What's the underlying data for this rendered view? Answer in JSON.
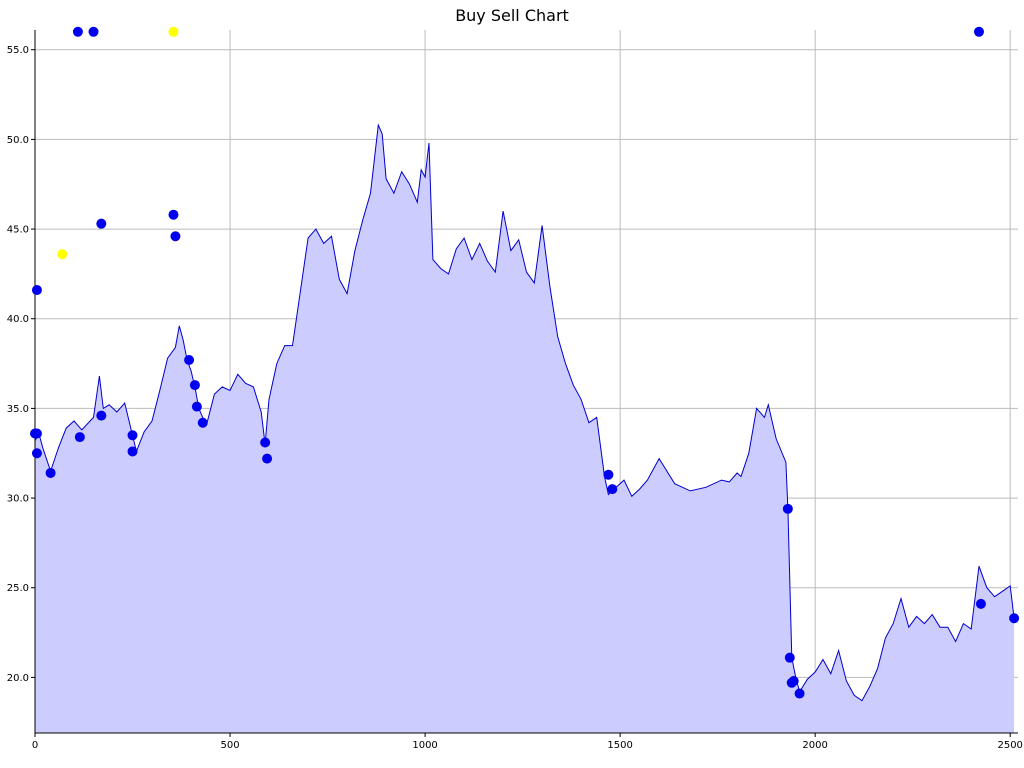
{
  "chart_data": {
    "type": "area",
    "title": "Buy Sell Chart",
    "xlabel": "",
    "ylabel": "",
    "xlim": [
      0,
      2520
    ],
    "ylim": [
      16.9,
      56.1
    ],
    "grid": true,
    "x_ticks": [
      0,
      500,
      1000,
      1500,
      2000,
      2500
    ],
    "y_ticks": [
      20.0,
      25.0,
      30.0,
      35.0,
      40.0,
      45.0,
      50.0,
      55.0
    ],
    "colors": {
      "line": "#0000cc",
      "fill": "#ccccff",
      "buy_sell_marker": "#0000ee",
      "alt_marker": "#ffff00",
      "grid": "#bbbbbb",
      "axis": "#000000"
    },
    "price_series": {
      "x": [
        0,
        10,
        20,
        40,
        60,
        80,
        100,
        120,
        150,
        165,
        175,
        190,
        210,
        230,
        250,
        260,
        280,
        300,
        320,
        340,
        360,
        370,
        380,
        390,
        400,
        410,
        420,
        430,
        440,
        460,
        480,
        500,
        520,
        540,
        560,
        580,
        590,
        600,
        620,
        640,
        660,
        680,
        700,
        720,
        740,
        760,
        780,
        800,
        820,
        840,
        860,
        880,
        890,
        900,
        920,
        940,
        960,
        980,
        990,
        1000,
        1010,
        1020,
        1040,
        1060,
        1080,
        1100,
        1120,
        1140,
        1160,
        1180,
        1200,
        1220,
        1240,
        1260,
        1280,
        1300,
        1320,
        1340,
        1360,
        1380,
        1400,
        1420,
        1440,
        1460,
        1470,
        1490,
        1510,
        1530,
        1550,
        1570,
        1600,
        1640,
        1680,
        1720,
        1760,
        1780,
        1800,
        1810,
        1830,
        1850,
        1870,
        1880,
        1900,
        1925,
        1930,
        1940,
        1950,
        1960,
        1980,
        2000,
        2020,
        2040,
        2060,
        2080,
        2100,
        2120,
        2140,
        2160,
        2180,
        2200,
        2220,
        2240,
        2260,
        2280,
        2300,
        2320,
        2340,
        2360,
        2380,
        2400,
        2420,
        2440,
        2460,
        2480,
        2500,
        2510
      ],
      "y": [
        33.2,
        33.6,
        32.8,
        31.5,
        32.8,
        33.9,
        34.3,
        33.8,
        34.5,
        36.8,
        35.0,
        35.2,
        34.8,
        35.3,
        33.5,
        32.6,
        33.7,
        34.3,
        36.0,
        37.8,
        38.4,
        39.6,
        38.8,
        37.7,
        37.1,
        36.2,
        35.0,
        34.5,
        34.1,
        35.8,
        36.2,
        36.0,
        36.9,
        36.4,
        36.2,
        34.8,
        33.0,
        35.5,
        37.5,
        38.5,
        38.5,
        41.5,
        44.5,
        45.0,
        44.2,
        44.6,
        42.2,
        41.4,
        43.8,
        45.5,
        47.0,
        50.8,
        50.3,
        47.8,
        47.0,
        48.2,
        47.5,
        46.5,
        48.3,
        47.9,
        49.8,
        43.3,
        42.8,
        42.5,
        43.9,
        44.5,
        43.3,
        44.2,
        43.2,
        42.6,
        46.0,
        43.8,
        44.4,
        42.6,
        42.0,
        45.2,
        41.8,
        39.0,
        37.5,
        36.3,
        35.5,
        34.2,
        34.5,
        31.2,
        30.2,
        30.6,
        31.0,
        30.1,
        30.5,
        31.0,
        32.2,
        30.8,
        30.4,
        30.6,
        31.0,
        30.9,
        31.4,
        31.2,
        32.5,
        35.0,
        34.5,
        35.2,
        33.3,
        32.0,
        29.4,
        21.1,
        20.0,
        19.2,
        19.9,
        20.3,
        21.0,
        20.2,
        21.5,
        19.8,
        19.0,
        18.7,
        19.5,
        20.5,
        22.2,
        23.0,
        24.4,
        22.8,
        23.4,
        23.0,
        23.5,
        22.8,
        22.8,
        22.0,
        23.0,
        22.7,
        26.2,
        25.0,
        24.5,
        24.8,
        25.1,
        23.3
      ],
      "baseline": 16.9
    },
    "markers": [
      {
        "x": 0,
        "y": 33.6,
        "kind": "blue"
      },
      {
        "x": 5,
        "y": 33.6,
        "kind": "blue"
      },
      {
        "x": 5,
        "y": 32.5,
        "kind": "blue"
      },
      {
        "x": 5,
        "y": 41.6,
        "kind": "blue"
      },
      {
        "x": 40,
        "y": 31.4,
        "kind": "blue"
      },
      {
        "x": 70,
        "y": 43.6,
        "kind": "yellow"
      },
      {
        "x": 110,
        "y": 56.0,
        "kind": "blue"
      },
      {
        "x": 115,
        "y": 33.4,
        "kind": "blue"
      },
      {
        "x": 150,
        "y": 56.0,
        "kind": "blue"
      },
      {
        "x": 170,
        "y": 34.6,
        "kind": "blue"
      },
      {
        "x": 170,
        "y": 45.3,
        "kind": "blue"
      },
      {
        "x": 250,
        "y": 33.5,
        "kind": "blue"
      },
      {
        "x": 250,
        "y": 32.6,
        "kind": "blue"
      },
      {
        "x": 355,
        "y": 56.0,
        "kind": "yellow"
      },
      {
        "x": 355,
        "y": 45.8,
        "kind": "blue"
      },
      {
        "x": 360,
        "y": 44.6,
        "kind": "blue"
      },
      {
        "x": 395,
        "y": 37.7,
        "kind": "blue"
      },
      {
        "x": 410,
        "y": 36.3,
        "kind": "blue"
      },
      {
        "x": 415,
        "y": 35.1,
        "kind": "blue"
      },
      {
        "x": 430,
        "y": 34.2,
        "kind": "blue"
      },
      {
        "x": 590,
        "y": 33.1,
        "kind": "blue"
      },
      {
        "x": 595,
        "y": 32.2,
        "kind": "blue"
      },
      {
        "x": 1470,
        "y": 31.3,
        "kind": "blue"
      },
      {
        "x": 1480,
        "y": 30.5,
        "kind": "blue"
      },
      {
        "x": 1930,
        "y": 29.4,
        "kind": "blue"
      },
      {
        "x": 1935,
        "y": 21.1,
        "kind": "blue"
      },
      {
        "x": 1940,
        "y": 19.7,
        "kind": "blue"
      },
      {
        "x": 1945,
        "y": 19.8,
        "kind": "blue"
      },
      {
        "x": 1960,
        "y": 19.1,
        "kind": "blue"
      },
      {
        "x": 2420,
        "y": 56.0,
        "kind": "blue"
      },
      {
        "x": 2425,
        "y": 24.1,
        "kind": "blue"
      },
      {
        "x": 2510,
        "y": 23.3,
        "kind": "blue"
      }
    ]
  }
}
